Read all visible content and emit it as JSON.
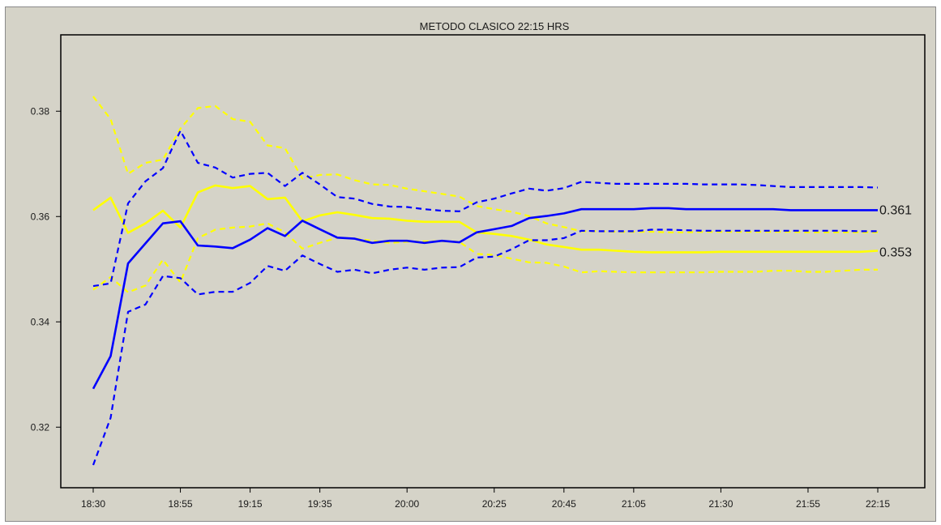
{
  "chart_data": {
    "type": "line",
    "title": "METODO CLASICO 22:15 HRS",
    "xlabel": "",
    "ylabel": "",
    "ylim": [
      0.3085,
      0.3945
    ],
    "yticks": [
      0.32,
      0.34,
      0.36,
      0.38
    ],
    "ytick_labels": [
      "0.32",
      "0.34",
      "0.36",
      "0.38"
    ],
    "x": [
      "18:30",
      "18:35",
      "18:40",
      "18:45",
      "18:50",
      "18:55",
      "19:00",
      "19:05",
      "19:10",
      "19:15",
      "19:20",
      "19:25",
      "19:30",
      "19:35",
      "19:40",
      "19:45",
      "19:50",
      "19:55",
      "20:00",
      "20:05",
      "20:10",
      "20:15",
      "20:20",
      "20:25",
      "20:30",
      "20:35",
      "20:40",
      "20:45",
      "20:50",
      "20:55",
      "21:00",
      "21:05",
      "21:10",
      "21:15",
      "21:20",
      "21:25",
      "21:30",
      "21:35",
      "21:40",
      "21:45",
      "21:50",
      "21:55",
      "22:00",
      "22:05",
      "22:10",
      "22:15"
    ],
    "xticks": [
      "18:30",
      "18:55",
      "19:15",
      "19:35",
      "20:00",
      "20:25",
      "20:45",
      "21:05",
      "21:30",
      "21:55",
      "22:15"
    ],
    "grid": false,
    "legend": "none",
    "series": [
      {
        "color": "#0000ff",
        "style": "solid",
        "values": [
          0.3273,
          0.3335,
          0.3511,
          0.3549,
          0.3587,
          0.3591,
          0.3545,
          0.3543,
          0.354,
          0.3556,
          0.3578,
          0.3563,
          0.3592,
          0.3576,
          0.356,
          0.3558,
          0.355,
          0.3554,
          0.3554,
          0.355,
          0.3554,
          0.3551,
          0.357,
          0.3576,
          0.3582,
          0.3597,
          0.3601,
          0.3606,
          0.3614,
          0.3614,
          0.3614,
          0.3614,
          0.3616,
          0.3616,
          0.3614,
          0.3614,
          0.3614,
          0.3614,
          0.3614,
          0.3614,
          0.3612,
          0.3612,
          0.3612,
          0.3612,
          0.3612,
          0.3612
        ]
      },
      {
        "color": "#0000ff",
        "style": "dashed",
        "values": [
          0.3468,
          0.3473,
          0.3625,
          0.3667,
          0.3692,
          0.3763,
          0.3702,
          0.3693,
          0.3674,
          0.3681,
          0.3683,
          0.3658,
          0.3683,
          0.3661,
          0.3637,
          0.3634,
          0.3624,
          0.3619,
          0.3618,
          0.3614,
          0.3611,
          0.361,
          0.3627,
          0.3634,
          0.3644,
          0.3653,
          0.3649,
          0.3654,
          0.3666,
          0.3664,
          0.3662,
          0.3662,
          0.3662,
          0.3662,
          0.3662,
          0.3661,
          0.3661,
          0.3661,
          0.366,
          0.3658,
          0.3656,
          0.3656,
          0.3656,
          0.3656,
          0.3656,
          0.3655
        ]
      },
      {
        "color": "#0000ff",
        "style": "dashed",
        "values": [
          0.3128,
          0.3218,
          0.3419,
          0.3433,
          0.3487,
          0.3483,
          0.3452,
          0.3457,
          0.3457,
          0.3474,
          0.3506,
          0.3497,
          0.3526,
          0.351,
          0.3495,
          0.3499,
          0.3492,
          0.3499,
          0.3503,
          0.3499,
          0.3503,
          0.3504,
          0.3522,
          0.3524,
          0.3538,
          0.3555,
          0.3555,
          0.3559,
          0.3573,
          0.3572,
          0.3572,
          0.3572,
          0.3575,
          0.3575,
          0.3574,
          0.3573,
          0.3573,
          0.3573,
          0.3573,
          0.3573,
          0.3573,
          0.3573,
          0.3573,
          0.3573,
          0.3572,
          0.3572
        ]
      },
      {
        "color": "#ffff00",
        "style": "solid",
        "values": [
          0.3612,
          0.3636,
          0.3569,
          0.3587,
          0.3611,
          0.3579,
          0.3646,
          0.3659,
          0.3654,
          0.3658,
          0.3633,
          0.3636,
          0.3591,
          0.3602,
          0.3608,
          0.3603,
          0.3597,
          0.3596,
          0.3592,
          0.359,
          0.359,
          0.359,
          0.357,
          0.3567,
          0.3563,
          0.3556,
          0.3547,
          0.3542,
          0.3537,
          0.3537,
          0.3535,
          0.3533,
          0.3532,
          0.3532,
          0.3532,
          0.3532,
          0.3533,
          0.3533,
          0.3533,
          0.3533,
          0.3533,
          0.3533,
          0.3533,
          0.3533,
          0.3533,
          0.3535
        ]
      },
      {
        "color": "#ffff00",
        "style": "dashed",
        "values": [
          0.3828,
          0.3785,
          0.3681,
          0.3702,
          0.3708,
          0.3767,
          0.3806,
          0.381,
          0.3785,
          0.378,
          0.3735,
          0.373,
          0.3672,
          0.3679,
          0.368,
          0.3669,
          0.3661,
          0.366,
          0.3653,
          0.3648,
          0.3643,
          0.3638,
          0.362,
          0.3614,
          0.3609,
          0.3601,
          0.3587,
          0.358,
          0.3572,
          0.3572,
          0.3571,
          0.3571,
          0.3571,
          0.357,
          0.357,
          0.3571,
          0.3571,
          0.3571,
          0.3571,
          0.3571,
          0.3571,
          0.357,
          0.357,
          0.357,
          0.357,
          0.357
        ]
      },
      {
        "color": "#ffff00",
        "style": "dashed",
        "values": [
          0.3461,
          0.3485,
          0.3456,
          0.3469,
          0.3518,
          0.3475,
          0.3559,
          0.3575,
          0.3579,
          0.3581,
          0.3587,
          0.357,
          0.3539,
          0.355,
          0.356,
          0.3558,
          0.3554,
          0.355,
          0.3552,
          0.3553,
          0.3553,
          0.3552,
          0.3529,
          0.3527,
          0.352,
          0.3513,
          0.3512,
          0.3505,
          0.3494,
          0.3496,
          0.3495,
          0.3494,
          0.3494,
          0.3494,
          0.3494,
          0.3494,
          0.3495,
          0.3495,
          0.3495,
          0.3497,
          0.3497,
          0.3495,
          0.3495,
          0.3497,
          0.3499,
          0.3499
        ]
      }
    ],
    "end_labels": [
      {
        "text": "0.361",
        "value": 0.3612
      },
      {
        "text": "0.353",
        "value": 0.3532
      }
    ]
  }
}
